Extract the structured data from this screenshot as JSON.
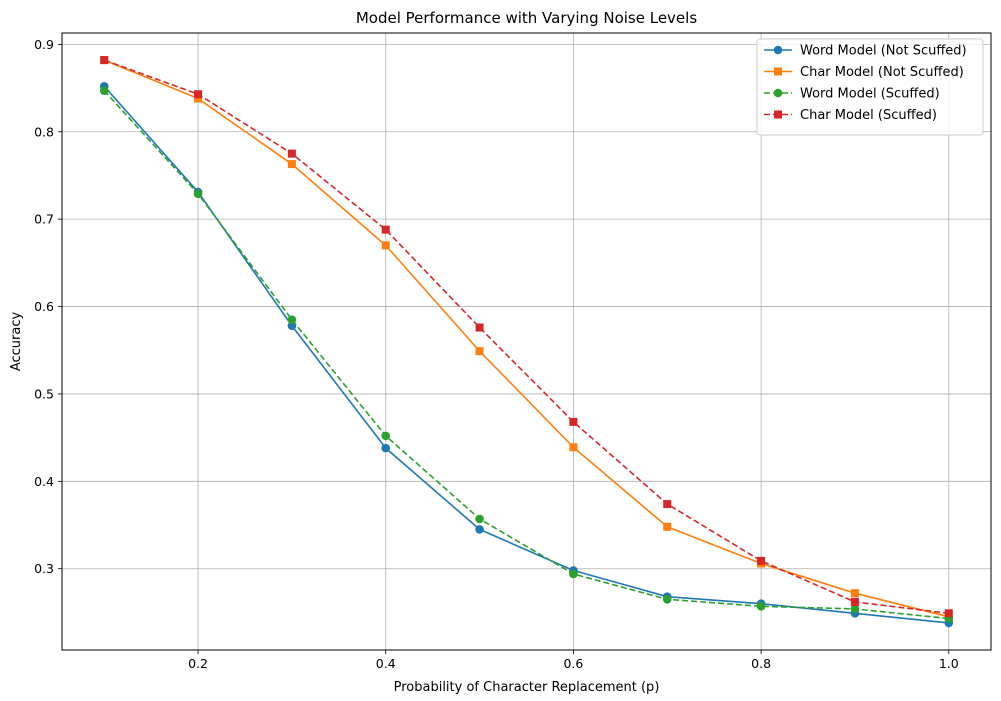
{
  "chart_data": {
    "type": "line",
    "title": "Model Performance with Varying Noise Levels",
    "xlabel": "Probability of Character Replacement (p)",
    "ylabel": "Accuracy",
    "xlim": [
      0.055,
      1.045
    ],
    "ylim": [
      0.207,
      0.913
    ],
    "xticks": [
      0.2,
      0.4,
      0.6,
      0.8,
      1.0
    ],
    "xtick_labels": [
      "0.2",
      "0.4",
      "0.6",
      "0.8",
      "1.0"
    ],
    "yticks": [
      0.3,
      0.4,
      0.5,
      0.6,
      0.7,
      0.8,
      0.9
    ],
    "ytick_labels": [
      "0.3",
      "0.4",
      "0.5",
      "0.6",
      "0.7",
      "0.8",
      "0.9"
    ],
    "grid": true,
    "legend_position": "top-right",
    "x": [
      0.1,
      0.2,
      0.3,
      0.4,
      0.5,
      0.6,
      0.7,
      0.8,
      0.9,
      1.0
    ],
    "series": [
      {
        "name": "Word Model (Not Scuffed)",
        "color": "#1f77b4",
        "marker": "circle",
        "linestyle": "solid",
        "values": [
          0.852,
          0.731,
          0.578,
          0.438,
          0.345,
          0.298,
          0.268,
          0.26,
          0.249,
          0.238
        ]
      },
      {
        "name": "Char Model (Not Scuffed)",
        "color": "#ff7f0e",
        "marker": "square",
        "linestyle": "solid",
        "values": [
          0.882,
          0.838,
          0.763,
          0.67,
          0.549,
          0.439,
          0.348,
          0.306,
          0.272,
          0.245
        ]
      },
      {
        "name": "Word Model (Scuffed)",
        "color": "#2ca02c",
        "marker": "circle",
        "linestyle": "dashed",
        "values": [
          0.847,
          0.729,
          0.585,
          0.452,
          0.357,
          0.294,
          0.265,
          0.257,
          0.254,
          0.243
        ]
      },
      {
        "name": "Char Model (Scuffed)",
        "color": "#d62728",
        "marker": "square",
        "linestyle": "dashed",
        "values": [
          0.882,
          0.843,
          0.775,
          0.688,
          0.576,
          0.468,
          0.374,
          0.309,
          0.262,
          0.249
        ]
      }
    ]
  }
}
